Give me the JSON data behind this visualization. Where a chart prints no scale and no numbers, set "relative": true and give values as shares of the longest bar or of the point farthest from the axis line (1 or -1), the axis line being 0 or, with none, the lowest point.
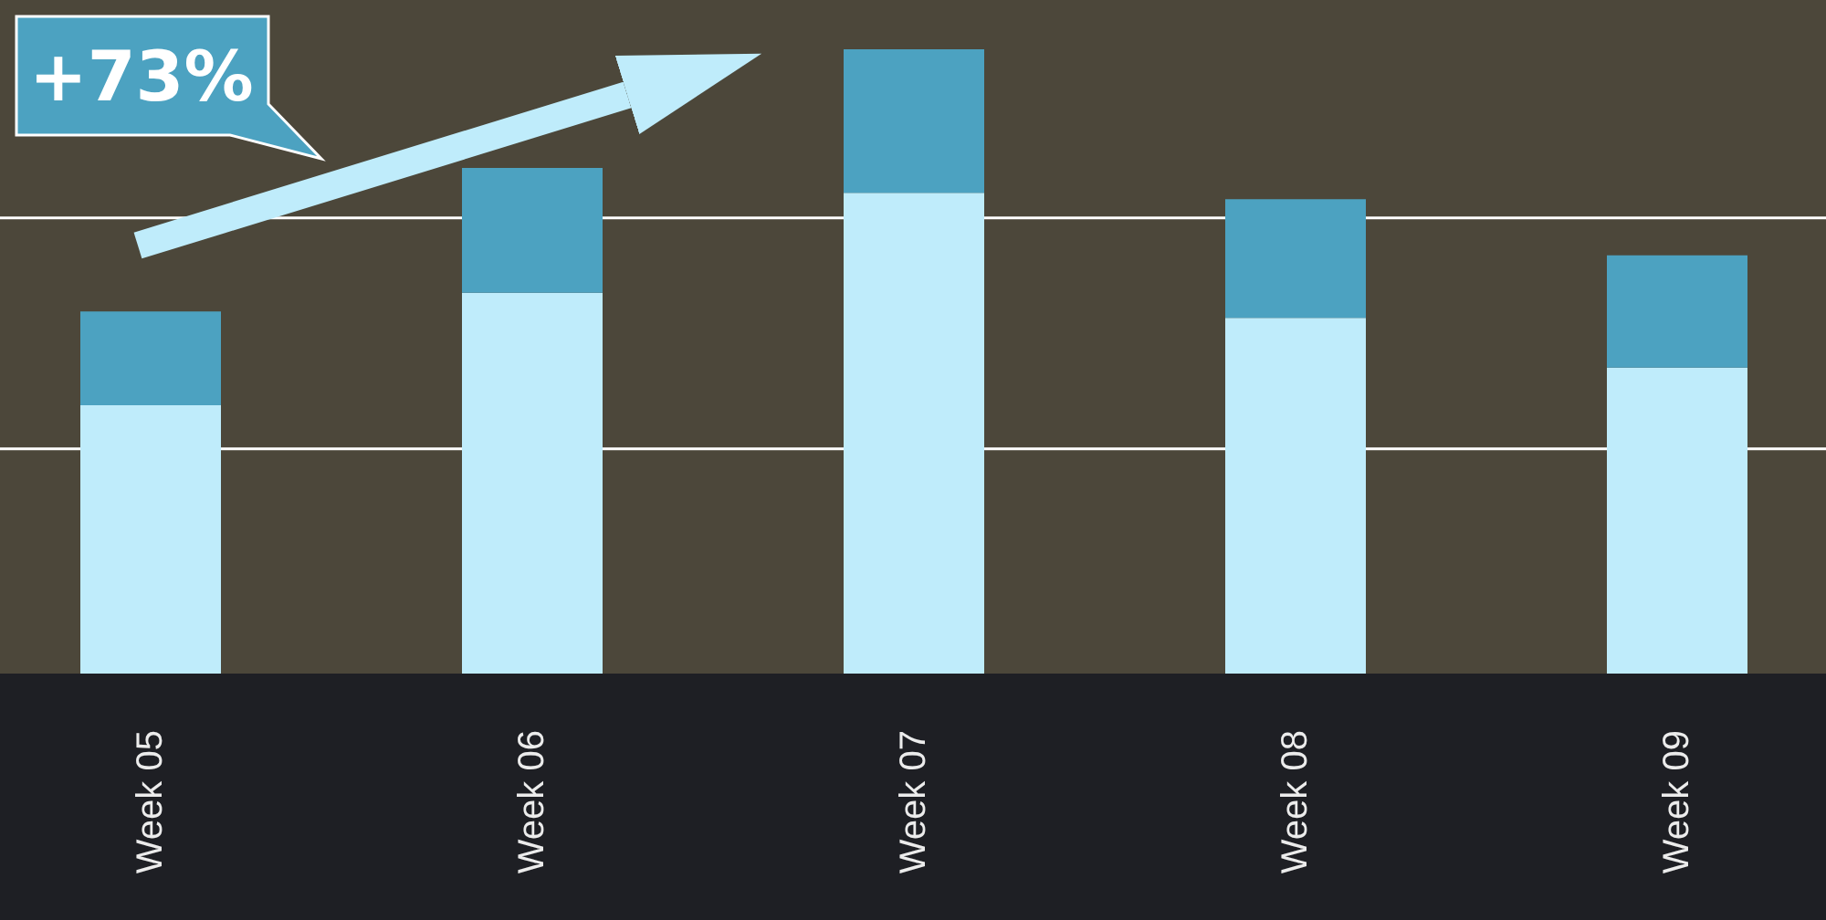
{
  "chart_data": {
    "type": "bar",
    "stacked": true,
    "relative": true,
    "categories": [
      "Week 05",
      "Week 06",
      "Week 07",
      "Week 08",
      "Week 09"
    ],
    "series": [
      {
        "color": "#bfecfb",
        "values": [
          0.43,
          0.61,
          0.77,
          0.57,
          0.49
        ]
      },
      {
        "color": "#4ca2c1",
        "values": [
          0.15,
          0.2,
          0.23,
          0.19,
          0.18
        ]
      }
    ],
    "ref_lines": [
      {
        "axis": "y",
        "value": 0.36,
        "color": "#ffffff"
      },
      {
        "axis": "y",
        "value": 0.73,
        "color": "#ffffff"
      }
    ],
    "annotations": [
      "+73%"
    ]
  }
}
